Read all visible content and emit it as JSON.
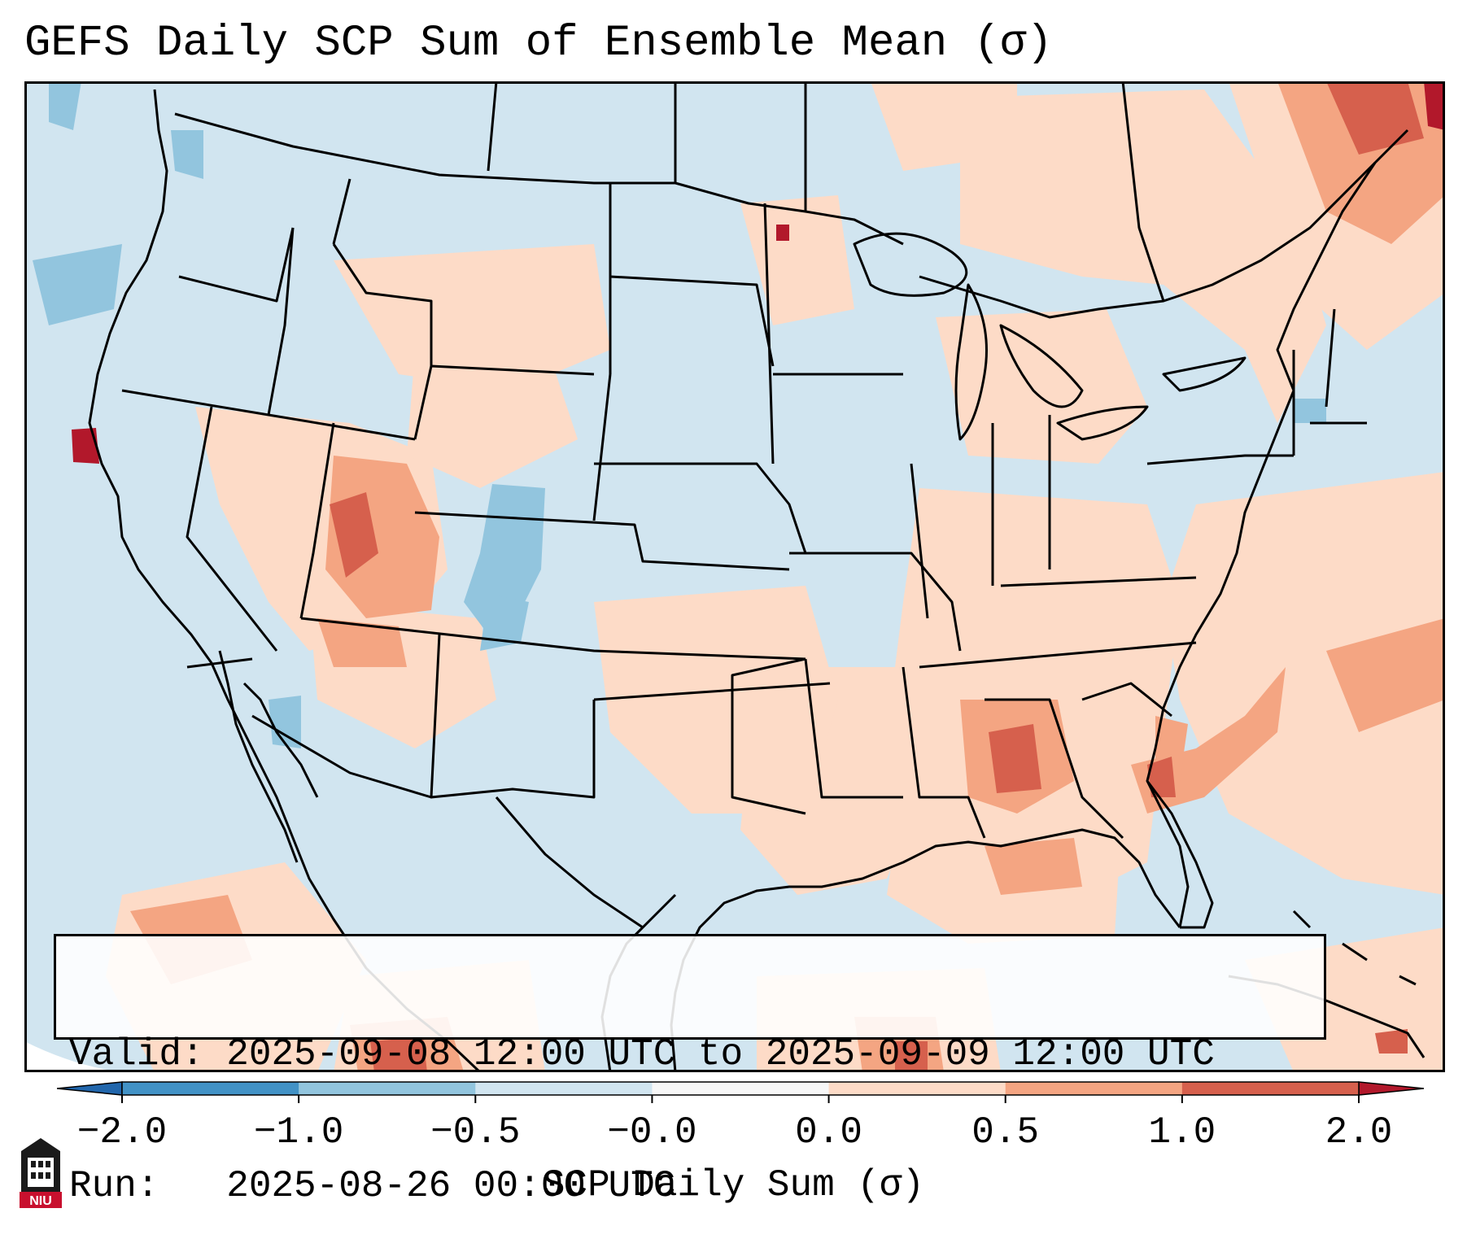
{
  "title": "GEFS Daily SCP Sum of Ensemble Mean (σ)",
  "info": {
    "valid_line": "Valid: 2025-09-08 12:00 UTC to 2025-09-09 12:00 UTC",
    "run_line": "Run:   2025-08-26 00:00 UTC"
  },
  "colorbar": {
    "label": "SCP Daily Sum (σ)",
    "ticks": [
      "-2.0",
      "-1.0",
      "-0.5",
      "-0.0",
      "0.0",
      "0.5",
      "1.0",
      "2.0"
    ],
    "colors": [
      "#4292c6",
      "#92c5de",
      "#d1e5f0",
      "#f7f7f7",
      "#fddbc7",
      "#f4a582",
      "#d6604d",
      "#b2182b"
    ],
    "extend_low_color": "#2166ac",
    "extend_high_color": "#b2182b"
  },
  "logo": {
    "text": "NIU",
    "color": "#c8102e"
  },
  "map": {
    "background_color": "#d1e5f0",
    "land_positive_color": "#fddbc7",
    "moderate_color": "#f4a582",
    "strong_color": "#d6604d",
    "extreme_color": "#b2182b",
    "negative_color": "#92c5de"
  }
}
